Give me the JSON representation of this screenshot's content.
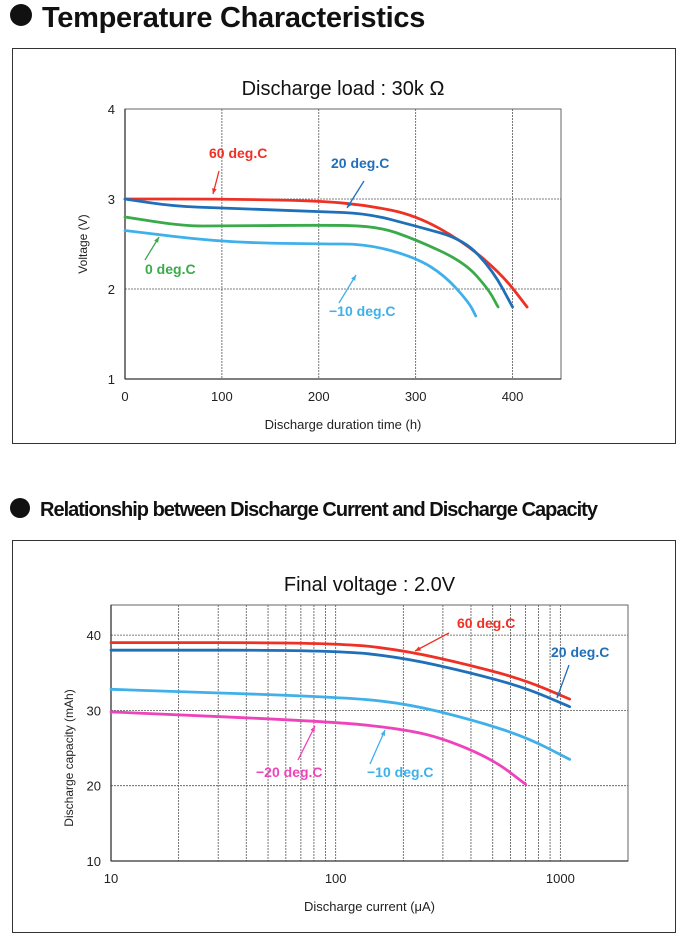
{
  "sections": [
    {
      "heading": "Temperature Characteristics"
    },
    {
      "heading": "Relationship between Discharge Current and Discharge Capacity"
    }
  ],
  "chart_data": [
    {
      "type": "line",
      "title": "Discharge load : 30k Ω",
      "xlabel": "Discharge duration time (h)",
      "ylabel": "Voltage (V)",
      "xlim": [
        0,
        450
      ],
      "ylim": [
        1,
        4
      ],
      "xticks": [
        0,
        100,
        200,
        300,
        400
      ],
      "yticks": [
        1,
        2,
        3,
        4
      ],
      "grid": true,
      "series": [
        {
          "name": "60 deg.C",
          "color": "#ee3124",
          "points": [
            [
              0,
              3.0
            ],
            [
              100,
              3.0
            ],
            [
              200,
              2.98
            ],
            [
              250,
              2.93
            ],
            [
              300,
              2.82
            ],
            [
              350,
              2.52
            ],
            [
              390,
              2.15
            ],
            [
              415,
              1.8
            ]
          ]
        },
        {
          "name": "20 deg.C",
          "color": "#1f6fb9",
          "points": [
            [
              0,
              3.0
            ],
            [
              50,
              2.92
            ],
            [
              100,
              2.9
            ],
            [
              200,
              2.86
            ],
            [
              250,
              2.84
            ],
            [
              300,
              2.7
            ],
            [
              350,
              2.55
            ],
            [
              380,
              2.2
            ],
            [
              400,
              1.8
            ]
          ]
        },
        {
          "name": "0 deg.C",
          "color": "#3aaa4a",
          "points": [
            [
              0,
              2.8
            ],
            [
              60,
              2.7
            ],
            [
              100,
              2.7
            ],
            [
              200,
              2.71
            ],
            [
              260,
              2.7
            ],
            [
              300,
              2.55
            ],
            [
              350,
              2.3
            ],
            [
              375,
              2.0
            ],
            [
              385,
              1.8
            ]
          ]
        },
        {
          "name": "−10 deg.C",
          "color": "#3fb0ea",
          "points": [
            [
              0,
              2.65
            ],
            [
              100,
              2.52
            ],
            [
              200,
              2.5
            ],
            [
              250,
              2.5
            ],
            [
              300,
              2.35
            ],
            [
              330,
              2.15
            ],
            [
              355,
              1.85
            ],
            [
              362,
              1.7
            ]
          ]
        }
      ]
    },
    {
      "type": "line",
      "title": "Final voltage : 2.0V",
      "xlabel": "Discharge current (μA)",
      "ylabel": "Discharge capacity (mAh)",
      "xscale": "log",
      "xlim": [
        10,
        2000
      ],
      "ylim": [
        10,
        44
      ],
      "xticks": [
        10,
        100,
        1000
      ],
      "yticks": [
        10,
        20,
        30,
        40
      ],
      "grid": true,
      "series": [
        {
          "name": "60 deg.C",
          "color": "#ee3124",
          "points": [
            [
              10,
              39
            ],
            [
              100,
              39
            ],
            [
              200,
              38
            ],
            [
              400,
              36
            ],
            [
              700,
              34
            ],
            [
              1100,
              31.5
            ]
          ]
        },
        {
          "name": "20 deg.C",
          "color": "#1f6fb9",
          "points": [
            [
              10,
              38
            ],
            [
              100,
              38
            ],
            [
              200,
              37
            ],
            [
              400,
              35
            ],
            [
              700,
              33
            ],
            [
              1100,
              30.5
            ]
          ]
        },
        {
          "name": "−10 deg.C",
          "color": "#3fb0ea",
          "points": [
            [
              10,
              32.8
            ],
            [
              100,
              31.8
            ],
            [
              200,
              31
            ],
            [
              400,
              28.8
            ],
            [
              700,
              26.5
            ],
            [
              1100,
              23.5
            ]
          ]
        },
        {
          "name": "−20 deg.C",
          "color": "#ee44bb",
          "points": [
            [
              10,
              29.8
            ],
            [
              100,
              28.5
            ],
            [
              200,
              27.5
            ],
            [
              300,
              26.3
            ],
            [
              500,
              23.5
            ],
            [
              700,
              20.2
            ]
          ]
        }
      ]
    }
  ]
}
